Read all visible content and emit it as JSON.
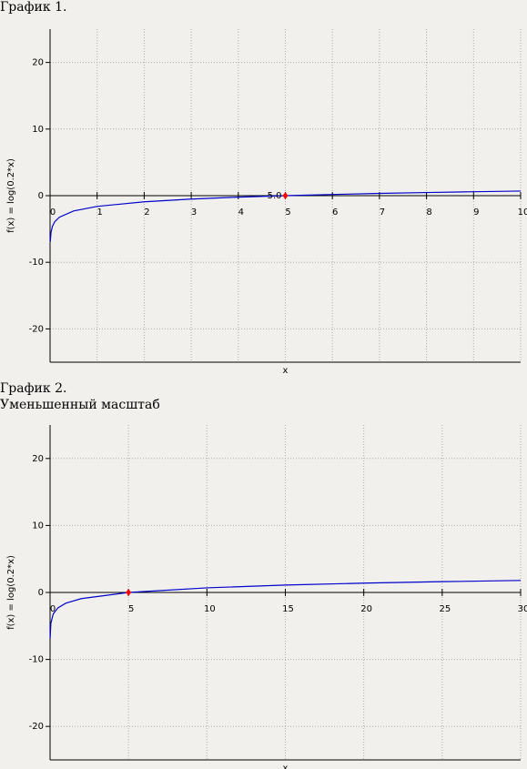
{
  "chart_data": [
    {
      "type": "line",
      "title": "График 1.",
      "xlabel": "x",
      "ylabel": "f(x) = log(0.2*x)",
      "xlim": [
        0,
        10
      ],
      "ylim": [
        -25,
        25
      ],
      "xticks": [
        0,
        1,
        2,
        3,
        4,
        5,
        6,
        7,
        8,
        9,
        10
      ],
      "yticks": [
        -20,
        -10,
        0,
        10,
        20
      ],
      "grid": true,
      "series": [
        {
          "color": "#0000cc",
          "x": [
            0.005,
            0.02,
            0.05,
            0.1,
            0.2,
            0.5,
            1,
            2,
            3,
            4,
            5,
            6,
            7,
            8,
            9,
            10
          ],
          "values": [
            -6.91,
            -5.52,
            -4.61,
            -3.91,
            -3.22,
            -2.3,
            -1.61,
            -0.92,
            -0.51,
            -0.22,
            0,
            0.18,
            0.34,
            0.47,
            0.59,
            0.69
          ]
        }
      ],
      "points": {
        "color": "#ff0000",
        "x": [
          5
        ],
        "values": [
          0
        ],
        "x_labels": [
          "5.0"
        ]
      }
    },
    {
      "type": "line",
      "title": "График 2.",
      "subtitle": "Уменьшенный масштаб",
      "xlabel": "x",
      "ylabel": "f(x) = log(0.2*x)",
      "xlim": [
        0,
        30
      ],
      "ylim": [
        -25,
        25
      ],
      "xticks": [
        0,
        5,
        10,
        15,
        20,
        25,
        30
      ],
      "yticks": [
        -20,
        -10,
        0,
        10,
        20
      ],
      "grid": true,
      "series": [
        {
          "color": "#0000cc",
          "x": [
            0.005,
            0.05,
            0.2,
            0.5,
            1,
            2,
            5,
            10,
            15,
            20,
            25,
            30
          ],
          "values": [
            -6.91,
            -4.61,
            -3.22,
            -2.3,
            -1.61,
            -0.92,
            0,
            0.69,
            1.1,
            1.39,
            1.61,
            1.79
          ]
        }
      ],
      "points": {
        "color": "#ff0000",
        "x": [
          5
        ],
        "values": [
          0
        ]
      }
    }
  ]
}
